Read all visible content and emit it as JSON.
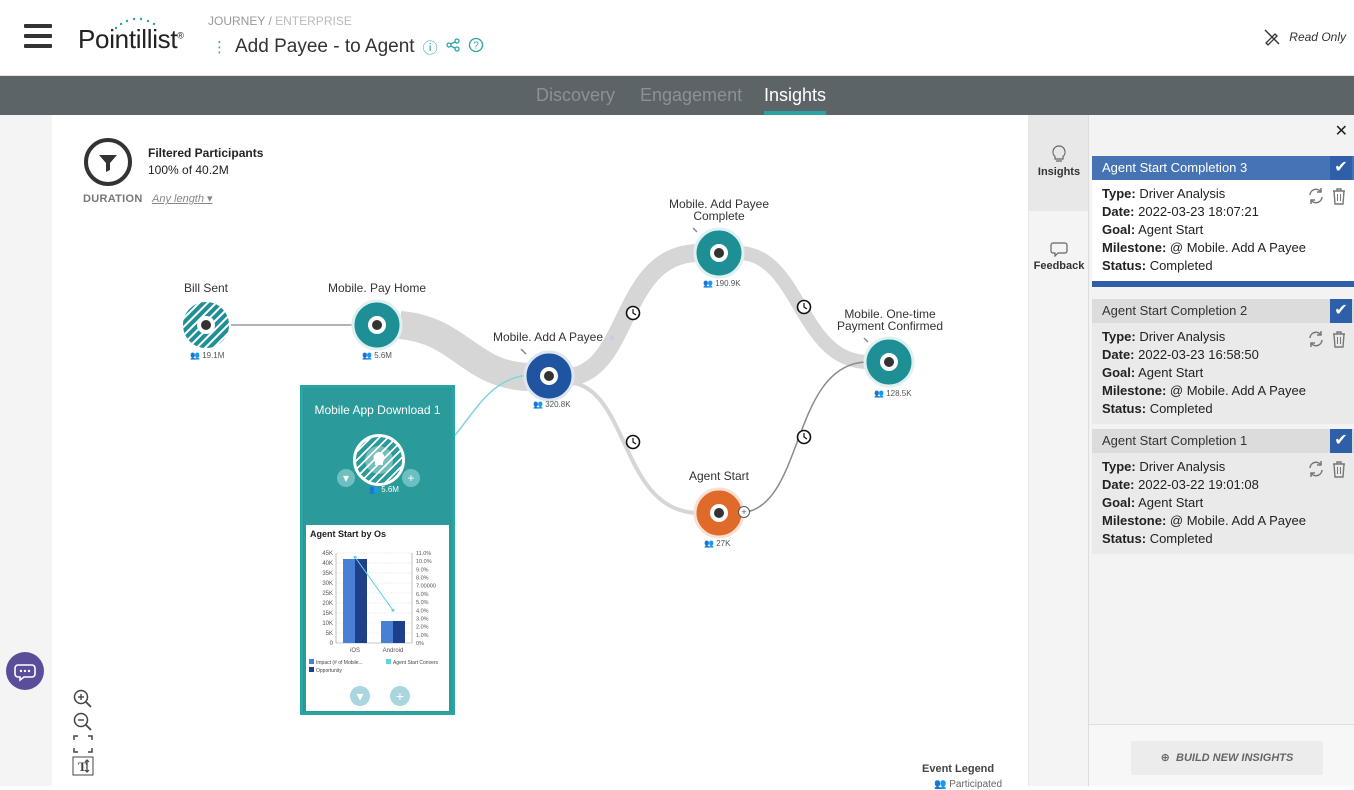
{
  "header": {
    "logo": "Pointillist",
    "breadcrumb_1": "JOURNEY /",
    "breadcrumb_2": "ENTERPRISE",
    "journey_title": "Add Payee - to Agent",
    "read_only_label": "Read Only"
  },
  "tabs": [
    {
      "label": "Discovery"
    },
    {
      "label": "Engagement"
    },
    {
      "label": "Insights"
    }
  ],
  "filter": {
    "title": "Filtered Participants",
    "subtitle": "100% of 40.2M",
    "duration_label": "DURATION",
    "duration_value": "Any length"
  },
  "nodes": [
    {
      "label": "Bill Sent",
      "count": "19.1M"
    },
    {
      "label": "Mobile. Pay Home",
      "count": "5.6M"
    },
    {
      "label": "Mobile. Add A Payee",
      "count": "320.8K"
    },
    {
      "label": "Mobile. Add Payee Complete",
      "count": "190.9K"
    },
    {
      "label": "Mobile. One-time Payment Confirmed",
      "count": "128.5K"
    },
    {
      "label": "Agent Start",
      "count": "27K"
    }
  ],
  "popup": {
    "title": "Mobile App Download 1",
    "count": "5.6M",
    "chart_data": {
      "type": "bar",
      "title": "Agent Start by Os",
      "categories": [
        "iOS",
        "Android"
      ],
      "series": [
        {
          "name": "Impact (# of Mobile...",
          "values": [
            42000,
            11000
          ],
          "axis": "left",
          "color": "#4a7fd6"
        },
        {
          "name": "Opportunity",
          "values": [
            42000,
            11000
          ],
          "axis": "left",
          "color": "#1e3f8a"
        },
        {
          "name": "Agent Start Convers",
          "values": [
            0.105,
            0.04
          ],
          "axis": "right",
          "color": "#5fd3e0"
        }
      ],
      "y_left_ticks": [
        "45K",
        "40K",
        "35K",
        "30K",
        "25K",
        "20K",
        "15K",
        "10K",
        "5K",
        "0"
      ],
      "y_right_ticks": [
        "11.0%",
        "10.0%",
        "9.0%",
        "8.0%",
        "7.00000",
        "6.0%",
        "5.0%",
        "4.0%",
        "3.0%",
        "2.0%",
        "1.0%",
        "0%"
      ],
      "ylim_left": [
        0,
        45000
      ],
      "ylim_right": [
        0,
        0.11
      ]
    }
  },
  "side_rail": {
    "insights_label": "Insights",
    "feedback_label": "Feedback"
  },
  "insights": {
    "cards": [
      {
        "title": "Agent Start Completion 3",
        "type": "Driver Analysis",
        "date": "2022-03-23 18:07:21",
        "goal": "Agent Start",
        "milestone": "@ Mobile. Add A Payee",
        "status": "Completed"
      },
      {
        "title": "Agent Start Completion 2",
        "type": "Driver Analysis",
        "date": "2022-03-23 16:58:50",
        "goal": "Agent Start",
        "milestone": "@ Mobile. Add A Payee",
        "status": "Completed"
      },
      {
        "title": "Agent Start Completion 1",
        "type": "Driver Analysis",
        "date": "2022-03-22 19:01:08",
        "goal": "Agent Start",
        "milestone": "@ Mobile. Add A Payee",
        "status": "Completed"
      }
    ],
    "field_labels": {
      "type": "Type:",
      "date": "Date:",
      "goal": "Goal:",
      "milestone": "Milestone:",
      "status": "Status:"
    },
    "build_button": "BUILD NEW INSIGHTS"
  },
  "legend": {
    "title": "Event Legend",
    "item": "Participated"
  },
  "colors": {
    "teal": "#1f8f96",
    "navy": "#1f55a0",
    "orange": "#e06a2a",
    "tabbar": "#5d6468",
    "accent": "#2aa3a3"
  }
}
